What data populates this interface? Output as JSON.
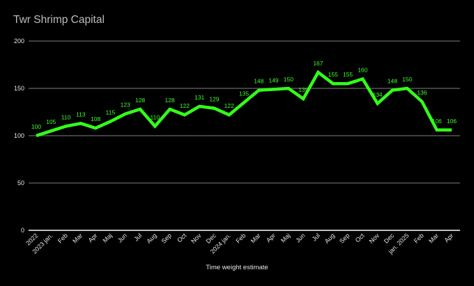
{
  "chart_data": {
    "type": "line",
    "title": "Twr Shrimp Capital",
    "xlabel": "Time weight estimate",
    "ylabel": "",
    "ylim": [
      0,
      200
    ],
    "yticks": [
      0,
      50,
      100,
      150,
      200
    ],
    "grid": true,
    "categories": [
      "2022",
      "2023 jan.",
      "Feb",
      "Mar",
      "Apr",
      "Maj",
      "Jun",
      "Jul",
      "Aug",
      "Sep",
      "Oct",
      "Nov",
      "Dec",
      "2024 jan.",
      "Feb",
      "Mar",
      "Apr",
      "Maj",
      "Jun",
      "Jul",
      "Aug",
      "Sep",
      "Oct",
      "Nov",
      "Dec",
      "jan. 2025",
      "Feb",
      "Mar",
      "Apr"
    ],
    "values": [
      100,
      105,
      110,
      113,
      108,
      115,
      123,
      128,
      110,
      128,
      122,
      131,
      129,
      122,
      135,
      148,
      149,
      150,
      139,
      167,
      155,
      155,
      160,
      134,
      148,
      150,
      136,
      106,
      106
    ],
    "colors": {
      "line": "#33ff1a",
      "labels": "#3dff2a",
      "background": "#000000",
      "grid": "#555555",
      "axis": "#ffffff"
    }
  }
}
